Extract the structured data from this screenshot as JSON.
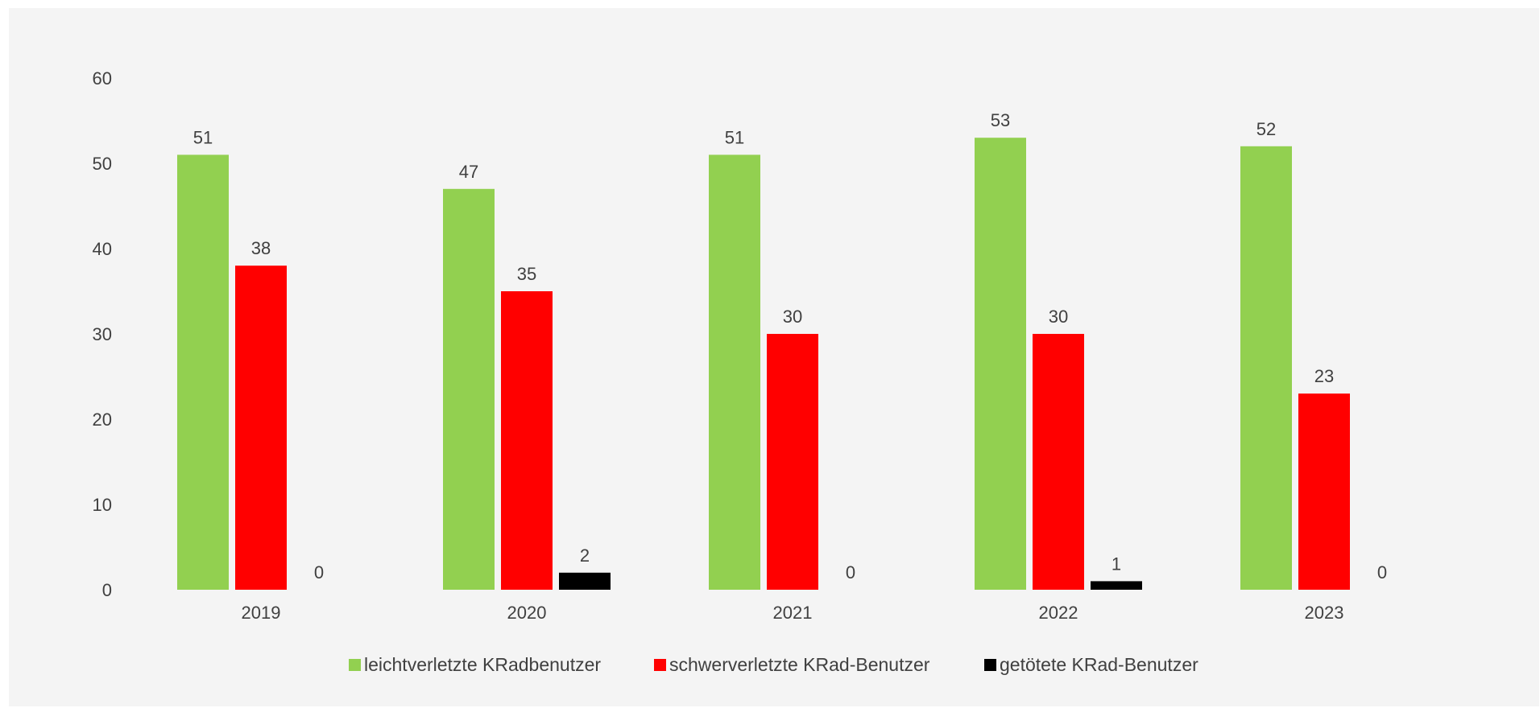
{
  "chart_data": {
    "type": "bar",
    "categories": [
      "2019",
      "2020",
      "2021",
      "2022",
      "2023"
    ],
    "series": [
      {
        "name": "leichtverletzte KRadbenutzer",
        "values": [
          51,
          47,
          51,
          53,
          52
        ],
        "color": "#92d050"
      },
      {
        "name": "schwerverletzte KRad-Benutzer",
        "values": [
          38,
          35,
          30,
          30,
          23
        ],
        "color": "#ff0000"
      },
      {
        "name": "getötete KRad-Benutzer",
        "values": [
          0,
          2,
          0,
          1,
          0
        ],
        "color": "#000000"
      }
    ],
    "ylim": [
      0,
      60
    ],
    "yticks": [
      0,
      10,
      20,
      30,
      40,
      50,
      60
    ],
    "grid": false,
    "legend": "bottom",
    "data_labels": true,
    "background": "#f4f4f4"
  }
}
